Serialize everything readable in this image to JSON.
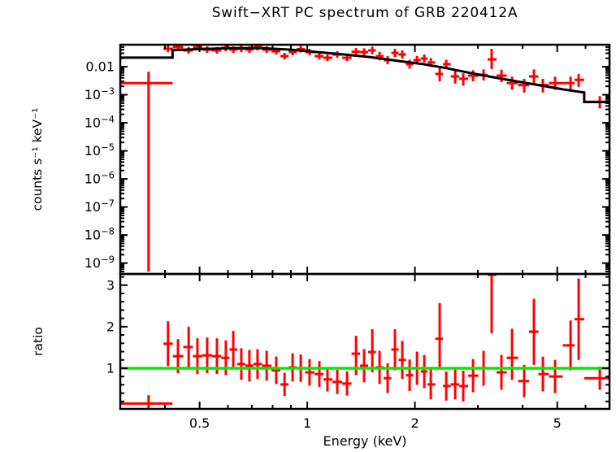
{
  "chart_data": {
    "type": "scatter",
    "title": "Swift−XRT PC spectrum of GRB 220412A",
    "xlabel": "Energy (keV)",
    "xscale": "log",
    "xlim": [
      0.3,
      7.0
    ],
    "x_major_ticks": [
      {
        "v": 0.5,
        "label": "0.5"
      },
      {
        "v": 1,
        "label": "1"
      },
      {
        "v": 2,
        "label": "2"
      },
      {
        "v": 5,
        "label": "5"
      }
    ],
    "x_minor_ticks": [
      0.4,
      0.6,
      0.7,
      0.8,
      0.9,
      3,
      4,
      6,
      7
    ],
    "colors": {
      "data": "#ff0000",
      "model": "#000000",
      "unity_line": "#00ee00",
      "axis": "#000000",
      "background": "#ffffff"
    },
    "panels": [
      {
        "name": "spectrum",
        "ylabel": "counts s⁻¹ keV⁻¹",
        "yscale": "log",
        "ylim": [
          4.1e-10,
          0.0607
        ],
        "y_major_ticks": [
          {
            "v": 0.01,
            "label": "0.01"
          },
          {
            "v": 0.001,
            "label": "10⁻³"
          },
          {
            "v": 0.0001,
            "label": "10⁻⁴"
          },
          {
            "v": 1e-05,
            "label": "10⁻⁵"
          },
          {
            "v": 1e-06,
            "label": "10⁻⁶"
          },
          {
            "v": 1e-07,
            "label": "10⁻⁷"
          },
          {
            "v": 1e-08,
            "label": "10⁻⁸"
          },
          {
            "v": 1e-09,
            "label": "10⁻⁹"
          }
        ],
        "points_format": [
          "energy_keV",
          "e_lo",
          "e_hi",
          "rate",
          "rate_lo",
          "rate_hi"
        ],
        "points": [
          [
            0.36,
            0.3,
            0.42,
            0.0026,
            5e-10,
            0.0066
          ],
          [
            0.408,
            0.396,
            0.421,
            0.0434,
            0.0332,
            0.0567
          ],
          [
            0.435,
            0.421,
            0.45,
            0.0497,
            0.038,
            0.065
          ],
          [
            0.466,
            0.45,
            0.479,
            0.038,
            0.0291,
            0.0497
          ],
          [
            0.493,
            0.479,
            0.509,
            0.0497,
            0.038,
            0.065
          ],
          [
            0.525,
            0.509,
            0.542,
            0.0406,
            0.031,
            0.0531
          ],
          [
            0.559,
            0.542,
            0.575,
            0.038,
            0.0291,
            0.0497
          ],
          [
            0.592,
            0.575,
            0.606,
            0.0465,
            0.0355,
            0.0608
          ],
          [
            0.621,
            0.606,
            0.637,
            0.0406,
            0.031,
            0.0531
          ],
          [
            0.654,
            0.637,
            0.671,
            0.0434,
            0.0332,
            0.0567
          ],
          [
            0.689,
            0.671,
            0.707,
            0.0406,
            0.031,
            0.0531
          ],
          [
            0.726,
            0.707,
            0.748,
            0.0497,
            0.038,
            0.065
          ],
          [
            0.77,
            0.748,
            0.794,
            0.0406,
            0.031,
            0.0531
          ],
          [
            0.819,
            0.794,
            0.841,
            0.0355,
            0.0271,
            0.0464
          ],
          [
            0.864,
            0.841,
            0.887,
            0.0238,
            0.0182,
            0.0311
          ],
          [
            0.91,
            0.887,
            0.934,
            0.0332,
            0.0254,
            0.0434
          ],
          [
            0.959,
            0.934,
            0.986,
            0.042,
            0.0321,
            0.0549
          ],
          [
            1.015,
            0.986,
            1.048,
            0.0332,
            0.0254,
            0.0434
          ],
          [
            1.081,
            1.048,
            1.11,
            0.0238,
            0.0182,
            0.0311
          ],
          [
            1.139,
            1.11,
            1.176,
            0.0208,
            0.0159,
            0.0272
          ],
          [
            1.213,
            1.176,
            1.252,
            0.0272,
            0.0208,
            0.0356
          ],
          [
            1.292,
            1.252,
            1.33,
            0.0208,
            0.0159,
            0.0272
          ],
          [
            1.369,
            1.33,
            1.405,
            0.034,
            0.025,
            0.0462
          ],
          [
            1.442,
            1.405,
            1.48,
            0.0332,
            0.0244,
            0.0452
          ],
          [
            1.52,
            1.48,
            1.556,
            0.038,
            0.0279,
            0.0517
          ],
          [
            1.593,
            1.556,
            1.635,
            0.0238,
            0.0169,
            0.0335
          ],
          [
            1.678,
            1.635,
            1.718,
            0.0171,
            0.0121,
            0.0241
          ],
          [
            1.759,
            1.718,
            1.801,
            0.031,
            0.0221,
            0.0434
          ],
          [
            1.844,
            1.801,
            1.888,
            0.0272,
            0.0194,
            0.0381
          ],
          [
            1.933,
            1.888,
            1.979,
            0.0123,
            0.0085,
            0.0178
          ],
          [
            2.027,
            1.979,
            2.075,
            0.0171,
            0.0121,
            0.0241
          ],
          [
            2.124,
            2.075,
            2.169,
            0.0195,
            0.0139,
            0.0273
          ],
          [
            2.215,
            2.169,
            2.28,
            0.0141,
            0.0098,
            0.0203
          ],
          [
            2.346,
            2.28,
            2.396,
            0.0055,
            0.003,
            0.0088
          ],
          [
            2.447,
            2.396,
            2.519,
            0.0123,
            0.0085,
            0.0178
          ],
          [
            2.592,
            2.519,
            2.66,
            0.0045,
            0.0025,
            0.0072
          ],
          [
            2.73,
            2.66,
            2.818,
            0.0037,
            0.0021,
            0.0058
          ],
          [
            2.908,
            2.818,
            3.009,
            0.0048,
            0.003,
            0.0075
          ],
          [
            3.112,
            3.009,
            3.194,
            0.0051,
            0.0032,
            0.008
          ],
          [
            3.278,
            3.194,
            3.383,
            0.0182,
            0.0082,
            0.0434
          ],
          [
            3.491,
            3.383,
            3.612,
            0.0048,
            0.0028,
            0.0078
          ],
          [
            3.738,
            3.612,
            3.886,
            0.0026,
            0.0015,
            0.0044
          ],
          [
            4.042,
            3.886,
            4.17,
            0.0022,
            0.0012,
            0.0037
          ],
          [
            4.304,
            4.17,
            4.428,
            0.0045,
            0.0022,
            0.008
          ],
          [
            4.559,
            4.428,
            4.74,
            0.0022,
            0.0012,
            0.0037
          ],
          [
            4.931,
            4.74,
            5.18,
            0.0026,
            0.0015,
            0.0044
          ],
          [
            5.448,
            5.18,
            5.59,
            0.0026,
            0.0015,
            0.0044
          ],
          [
            5.74,
            5.59,
            5.95,
            0.0034,
            0.0019,
            0.0055
          ],
          [
            6.577,
            5.95,
            7.0,
            0.00056,
            0.00033,
            0.00089
          ]
        ],
        "model_curve": [
          [
            0.3,
            0.021
          ],
          [
            0.42,
            0.021
          ],
          [
            0.42,
            0.0385
          ],
          [
            0.5,
            0.0425
          ],
          [
            0.62,
            0.046
          ],
          [
            0.75,
            0.0455
          ],
          [
            0.9,
            0.0405
          ],
          [
            1.05,
            0.034
          ],
          [
            1.25,
            0.0278
          ],
          [
            1.5,
            0.0218
          ],
          [
            1.8,
            0.016
          ],
          [
            2.1,
            0.0124
          ],
          [
            2.45,
            0.0089
          ],
          [
            2.85,
            0.006
          ],
          [
            3.3,
            0.00425
          ],
          [
            3.85,
            0.003
          ],
          [
            4.5,
            0.00215
          ],
          [
            5.2,
            0.00155
          ],
          [
            5.95,
            0.0012
          ],
          [
            5.95,
            0.00055
          ],
          [
            7.0,
            0.00055
          ]
        ]
      },
      {
        "name": "ratio",
        "ylabel": "ratio",
        "yscale": "linear",
        "ylim": [
          0.02,
          3.27
        ],
        "y_major_ticks": [
          {
            "v": 1,
            "label": "1"
          },
          {
            "v": 2,
            "label": "2"
          },
          {
            "v": 3,
            "label": "3"
          }
        ],
        "y_minor_step": 0.2,
        "unity_line": 1,
        "points_format": [
          "energy_keV",
          "e_lo",
          "e_hi",
          "ratio",
          "ratio_lo",
          "ratio_hi"
        ],
        "points": [
          [
            0.36,
            0.3,
            0.42,
            0.15,
            0.02,
            0.35
          ],
          [
            0.408,
            0.396,
            0.421,
            1.59,
            1.05,
            2.13
          ],
          [
            0.435,
            0.421,
            0.45,
            1.29,
            0.88,
            1.7
          ],
          [
            0.466,
            0.45,
            0.479,
            1.51,
            1.02,
            2.0
          ],
          [
            0.493,
            0.479,
            0.509,
            1.29,
            0.86,
            1.72
          ],
          [
            0.525,
            0.509,
            0.542,
            1.31,
            0.88,
            1.74
          ],
          [
            0.559,
            0.542,
            0.575,
            1.29,
            0.86,
            1.72
          ],
          [
            0.592,
            0.575,
            0.606,
            1.25,
            0.83,
            1.67
          ],
          [
            0.621,
            0.606,
            0.637,
            1.45,
            1.0,
            1.9
          ],
          [
            0.654,
            0.637,
            0.671,
            1.1,
            0.72,
            1.48
          ],
          [
            0.689,
            0.671,
            0.707,
            1.06,
            0.68,
            1.44
          ],
          [
            0.726,
            0.707,
            0.748,
            1.1,
            0.74,
            1.46
          ],
          [
            0.77,
            0.748,
            0.794,
            1.06,
            0.7,
            1.42
          ],
          [
            0.819,
            0.794,
            0.841,
            0.95,
            0.62,
            1.28
          ],
          [
            0.864,
            0.841,
            0.887,
            0.61,
            0.33,
            0.89
          ],
          [
            0.91,
            0.887,
            0.934,
            1.02,
            0.68,
            1.36
          ],
          [
            0.959,
            0.934,
            0.986,
            1.0,
            0.67,
            1.33
          ],
          [
            1.015,
            0.986,
            1.048,
            0.9,
            0.58,
            1.22
          ],
          [
            1.081,
            1.048,
            1.11,
            0.86,
            0.55,
            1.17
          ],
          [
            1.139,
            1.11,
            1.176,
            0.73,
            0.44,
            1.02
          ],
          [
            1.213,
            1.176,
            1.252,
            0.67,
            0.38,
            0.96
          ],
          [
            1.292,
            1.252,
            1.33,
            0.63,
            0.34,
            0.92
          ],
          [
            1.369,
            1.33,
            1.405,
            1.35,
            0.83,
            1.78
          ],
          [
            1.442,
            1.405,
            1.48,
            1.06,
            0.66,
            1.46
          ],
          [
            1.52,
            1.48,
            1.556,
            1.39,
            0.9,
            1.94
          ],
          [
            1.593,
            1.556,
            1.635,
            1.02,
            0.62,
            1.42
          ],
          [
            1.678,
            1.635,
            1.718,
            0.76,
            0.4,
            1.12
          ],
          [
            1.759,
            1.718,
            1.801,
            1.45,
            0.95,
            1.94
          ],
          [
            1.844,
            1.801,
            1.888,
            1.2,
            0.74,
            1.66
          ],
          [
            1.933,
            1.888,
            1.979,
            0.83,
            0.45,
            1.21
          ],
          [
            2.027,
            1.979,
            2.075,
            1.0,
            0.6,
            1.4
          ],
          [
            2.124,
            2.075,
            2.169,
            0.92,
            0.52,
            1.32
          ],
          [
            2.215,
            2.169,
            2.28,
            0.61,
            0.25,
            0.97
          ],
          [
            2.346,
            2.28,
            2.396,
            1.71,
            1.0,
            2.57
          ],
          [
            2.447,
            2.396,
            2.519,
            0.57,
            0.22,
            0.92
          ],
          [
            2.592,
            2.519,
            2.66,
            0.61,
            0.25,
            0.97
          ],
          [
            2.73,
            2.66,
            2.818,
            0.57,
            0.2,
            0.94
          ],
          [
            2.908,
            2.818,
            3.009,
            0.82,
            0.42,
            1.22
          ],
          [
            3.112,
            3.009,
            3.194,
            1.0,
            0.58,
            1.42
          ],
          [
            3.278,
            3.194,
            3.383,
            3.25,
            1.84,
            3.5
          ],
          [
            3.491,
            3.383,
            3.612,
            0.9,
            0.48,
            1.32
          ],
          [
            3.738,
            3.612,
            3.886,
            1.25,
            0.72,
            1.95
          ],
          [
            4.042,
            3.886,
            4.17,
            0.69,
            0.3,
            1.08
          ],
          [
            4.304,
            4.17,
            4.428,
            1.88,
            1.08,
            2.67
          ],
          [
            4.559,
            4.428,
            4.74,
            0.86,
            0.44,
            1.28
          ],
          [
            4.931,
            4.74,
            5.18,
            0.8,
            0.4,
            1.2
          ],
          [
            5.448,
            5.18,
            5.59,
            1.55,
            0.95,
            2.15
          ],
          [
            5.74,
            5.59,
            5.95,
            2.18,
            1.2,
            3.16
          ],
          [
            6.577,
            5.95,
            7.0,
            0.76,
            0.48,
            1.04
          ]
        ]
      }
    ]
  }
}
